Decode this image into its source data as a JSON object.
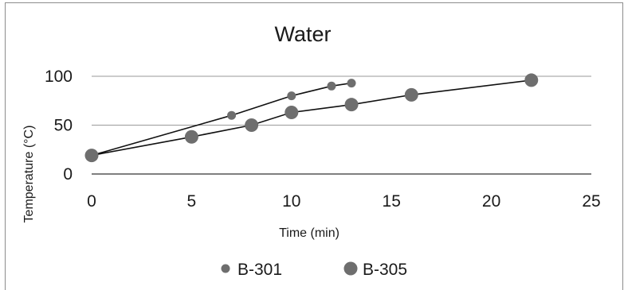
{
  "chart_data": {
    "type": "scatter",
    "title": "Water",
    "xlabel": "Time (min)",
    "ylabel": "Temperature (°C)",
    "xlim": [
      0,
      25
    ],
    "ylim": [
      0,
      100
    ],
    "xticks": [
      "0",
      "5",
      "10",
      "15",
      "20",
      "25"
    ],
    "yticks": [
      "0",
      "50",
      "100"
    ],
    "grid": "horizontal",
    "legend": "bottom",
    "color": "#6e6e6e",
    "series": [
      {
        "name": "B-301",
        "marker": "small",
        "points": [
          [
            0,
            19
          ],
          [
            7,
            60
          ],
          [
            10,
            80
          ],
          [
            12,
            90
          ],
          [
            13,
            93
          ]
        ]
      },
      {
        "name": "B-305",
        "marker": "large",
        "points": [
          [
            0,
            19
          ],
          [
            5,
            38
          ],
          [
            8,
            50
          ],
          [
            10,
            63
          ],
          [
            13,
            71
          ],
          [
            16,
            81
          ],
          [
            22,
            96
          ]
        ]
      }
    ]
  }
}
